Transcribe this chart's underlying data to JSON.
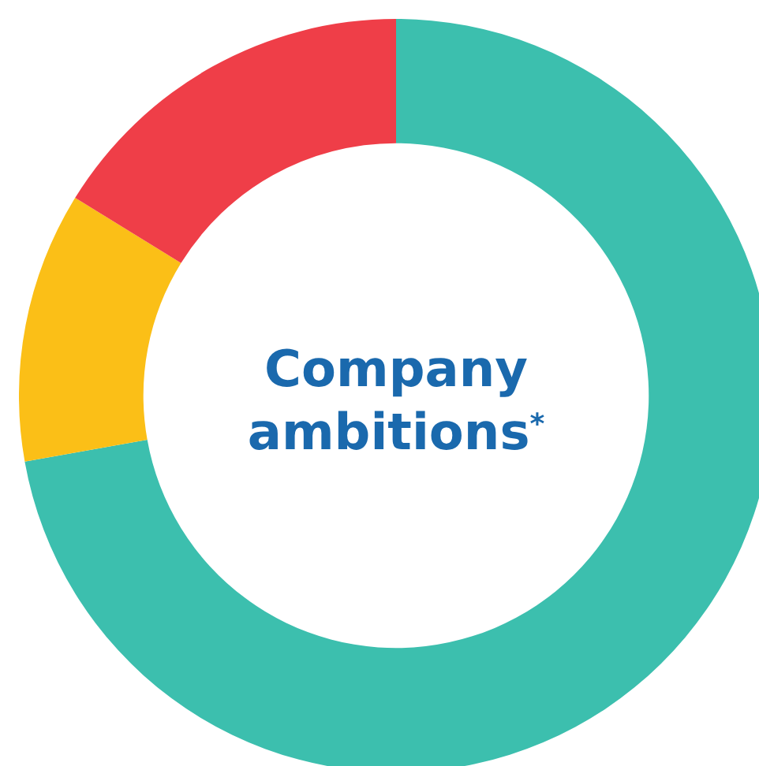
{
  "chart_data": {
    "type": "donut",
    "title": "Company ambitions$^{*}$",
    "categories": [
      null,
      null,
      null
    ],
    "values": [
      72.2,
      11.6,
      16.2
    ],
    "colors": [
      "#3cbfae",
      "#fbbf17",
      "#ef3e48"
    ]
  }
}
